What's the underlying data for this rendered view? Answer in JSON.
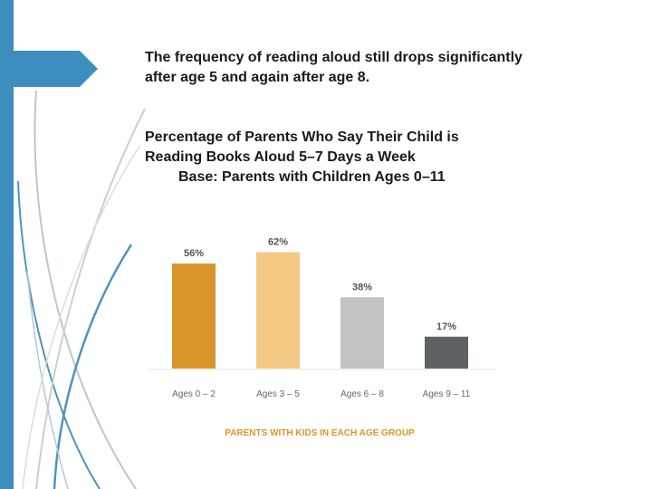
{
  "slide": {
    "headline_line1": "The frequency of reading aloud still drops significantly",
    "headline_line2": "after age 5 and again after age 8.",
    "subtitle_line1": "Percentage of Parents Who Say Their Child is",
    "subtitle_line2": "Reading Books Aloud 5–7 Days a Week",
    "subtitle_line3": "Base: Parents with Children Ages 0–11"
  },
  "theme": {
    "accent_blue": "#3d8ebf",
    "deco_line_blue": "#4f93c1",
    "deco_line_gray": "#b9c7d1"
  },
  "chart_data": {
    "type": "bar",
    "title": "",
    "xlabel": "PARENTS WITH KIDS IN EACH AGE GROUP",
    "ylabel": "",
    "categories": [
      "Ages 0 – 2",
      "Ages 3 – 5",
      "Ages 6 – 8",
      "Ages 9 – 11"
    ],
    "values": [
      56,
      62,
      38,
      17
    ],
    "value_labels": [
      "56%",
      "62%",
      "38%",
      "17%"
    ],
    "colors": [
      "#d9962b",
      "#f2c883",
      "#c3c3c5",
      "#5d6265"
    ],
    "label_color": "#555555",
    "xlabel_color": "#d9962b",
    "ylim": [
      0,
      70
    ],
    "grid": false,
    "legend": "none"
  }
}
